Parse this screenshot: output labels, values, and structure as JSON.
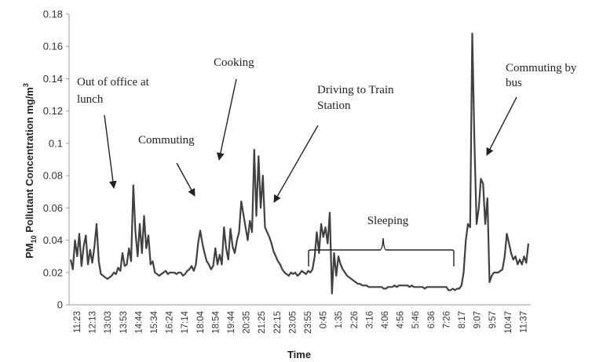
{
  "chart_data": {
    "type": "line",
    "xlabel": "Time",
    "ylabel": "PM10 Pollutant Concentration mg/m3",
    "ylabel_parts": {
      "main": "PM",
      "sub": "10",
      "rest": " Pollutant Concentration mg/m",
      "sup": "3"
    },
    "ylim": [
      0,
      0.18
    ],
    "yticks": [
      "0",
      "0.02",
      "0.04",
      "0.06",
      "0.08",
      "0.1",
      "0.12",
      "0.14",
      "0.16",
      "0.18"
    ],
    "yticks_values": [
      0,
      0.02,
      0.04,
      0.06,
      0.08,
      0.1,
      0.12,
      0.14,
      0.16,
      0.18
    ],
    "xticks": [
      "11:23",
      "12:13",
      "13:03",
      "13:53",
      "14:44",
      "15:34",
      "16:24",
      "17:14",
      "18:04",
      "18:54",
      "19:44",
      "20:35",
      "21:25",
      "22:15",
      "23:05",
      "23:55",
      "0:45",
      "1:35",
      "2:26",
      "3:16",
      "4:06",
      "4:56",
      "5:46",
      "6:36",
      "7:26",
      "8:17",
      "9:07",
      "9:57",
      "10:47",
      "11:37"
    ],
    "grid": false,
    "line_color": "#404040",
    "series": [
      {
        "values": [
          0.028,
          0.022,
          0.04,
          0.03,
          0.044,
          0.024,
          0.036,
          0.043,
          0.025,
          0.034,
          0.026,
          0.036,
          0.05,
          0.027,
          0.019,
          0.018,
          0.017,
          0.016,
          0.017,
          0.018,
          0.02,
          0.019,
          0.023,
          0.021,
          0.032,
          0.024,
          0.025,
          0.035,
          0.027,
          0.074,
          0.045,
          0.03,
          0.05,
          0.032,
          0.055,
          0.035,
          0.043,
          0.025,
          0.027,
          0.02,
          0.019,
          0.018,
          0.019,
          0.02,
          0.021,
          0.019,
          0.02,
          0.02,
          0.02,
          0.019,
          0.02,
          0.02,
          0.018,
          0.019,
          0.021,
          0.022,
          0.024,
          0.021,
          0.025,
          0.038,
          0.046,
          0.038,
          0.032,
          0.027,
          0.025,
          0.022,
          0.024,
          0.035,
          0.025,
          0.031,
          0.025,
          0.048,
          0.035,
          0.028,
          0.047,
          0.036,
          0.032,
          0.04,
          0.045,
          0.064,
          0.056,
          0.048,
          0.04,
          0.052,
          0.045,
          0.096,
          0.055,
          0.092,
          0.06,
          0.08,
          0.048,
          0.045,
          0.042,
          0.038,
          0.033,
          0.03,
          0.027,
          0.025,
          0.022,
          0.02,
          0.019,
          0.018,
          0.02,
          0.019,
          0.02,
          0.018,
          0.019,
          0.021,
          0.02,
          0.019,
          0.021,
          0.02,
          0.022,
          0.03,
          0.045,
          0.032,
          0.05,
          0.042,
          0.048,
          0.038,
          0.057,
          0.007,
          0.032,
          0.018,
          0.03,
          0.025,
          0.022,
          0.02,
          0.018,
          0.017,
          0.016,
          0.015,
          0.014,
          0.013,
          0.013,
          0.012,
          0.012,
          0.012,
          0.011,
          0.011,
          0.011,
          0.011,
          0.011,
          0.011,
          0.011,
          0.01,
          0.01,
          0.011,
          0.011,
          0.011,
          0.012,
          0.011,
          0.012,
          0.012,
          0.012,
          0.012,
          0.012,
          0.011,
          0.012,
          0.011,
          0.011,
          0.011,
          0.011,
          0.011,
          0.01,
          0.011,
          0.011,
          0.011,
          0.011,
          0.011,
          0.011,
          0.011,
          0.011,
          0.011,
          0.011,
          0.009,
          0.009,
          0.01,
          0.009,
          0.01,
          0.01,
          0.012,
          0.02,
          0.04,
          0.05,
          0.048,
          0.168,
          0.1,
          0.05,
          0.06,
          0.078,
          0.075,
          0.05,
          0.066,
          0.014,
          0.018,
          0.02,
          0.02,
          0.02,
          0.021,
          0.022,
          0.03,
          0.044,
          0.038,
          0.032,
          0.028,
          0.03,
          0.025,
          0.028,
          0.025,
          0.03,
          0.026,
          0.038
        ]
      }
    ],
    "annotations": [
      {
        "lines": [
          "Out of office at",
          "lunch"
        ]
      },
      {
        "lines": [
          "Commuting"
        ]
      },
      {
        "lines": [
          "Cooking"
        ]
      },
      {
        "lines": [
          "Driving to Train",
          "Station"
        ]
      },
      {
        "lines": [
          "Sleeping"
        ]
      },
      {
        "lines": [
          "Commuting by",
          "bus"
        ]
      }
    ]
  }
}
